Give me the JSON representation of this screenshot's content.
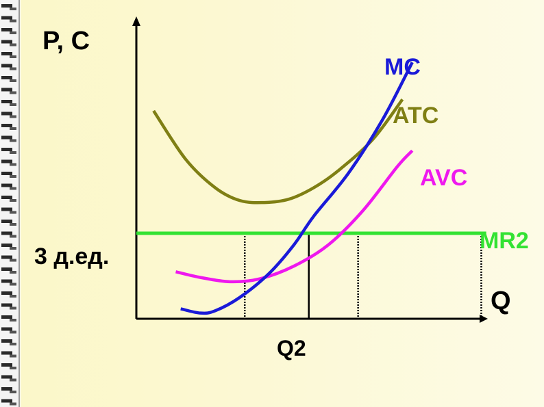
{
  "chart_data": {
    "type": "line",
    "title": "",
    "ylabel": "P, C",
    "xlabel": "Q",
    "x_tick_labels": [
      "Q2"
    ],
    "y_tick_labels": [
      "3 д.ед."
    ],
    "grid": false,
    "series": [
      {
        "name": "MC",
        "color": "#1a1ad8",
        "points": [
          [
            0.9,
            0.35
          ],
          [
            1.3,
            0.2
          ],
          [
            1.6,
            0.28
          ],
          [
            2.1,
            0.75
          ],
          [
            2.7,
            1.6
          ],
          [
            3.2,
            2.6
          ],
          [
            3.6,
            3.6
          ],
          [
            4.3,
            5.1
          ],
          [
            5.0,
            7.0
          ],
          [
            5.6,
            9.0
          ]
        ]
      },
      {
        "name": "ATC",
        "color": "#7f7f14",
        "points": [
          [
            0.35,
            7.3
          ],
          [
            1.0,
            5.6
          ],
          [
            1.6,
            4.6
          ],
          [
            2.1,
            4.15
          ],
          [
            2.6,
            4.08
          ],
          [
            3.1,
            4.2
          ],
          [
            3.6,
            4.6
          ],
          [
            4.1,
            5.2
          ],
          [
            4.8,
            6.3
          ],
          [
            5.4,
            7.7
          ]
        ]
      },
      {
        "name": "AVC",
        "color": "#ee18ee",
        "points": [
          [
            0.8,
            1.65
          ],
          [
            1.3,
            1.45
          ],
          [
            1.9,
            1.3
          ],
          [
            2.5,
            1.4
          ],
          [
            3.2,
            1.85
          ],
          [
            3.9,
            2.6
          ],
          [
            4.6,
            3.8
          ],
          [
            5.3,
            5.35
          ],
          [
            5.6,
            5.9
          ]
        ]
      },
      {
        "name": "MR2",
        "color": "#33e233",
        "points": [
          [
            0.0,
            3.0
          ],
          [
            7.1,
            3.0
          ]
        ]
      }
    ],
    "dropped_lines": [
      {
        "x": 2.2,
        "style": "dotted"
      },
      {
        "x": 3.5,
        "style": "solid"
      },
      {
        "x": 4.5,
        "style": "dotted"
      },
      {
        "x": 7.0,
        "style": "dotted"
      }
    ],
    "q2_x": 3.5,
    "price_level": 3.0,
    "xlim": [
      0,
      7.8
    ],
    "ylim": [
      0,
      10.3
    ]
  }
}
